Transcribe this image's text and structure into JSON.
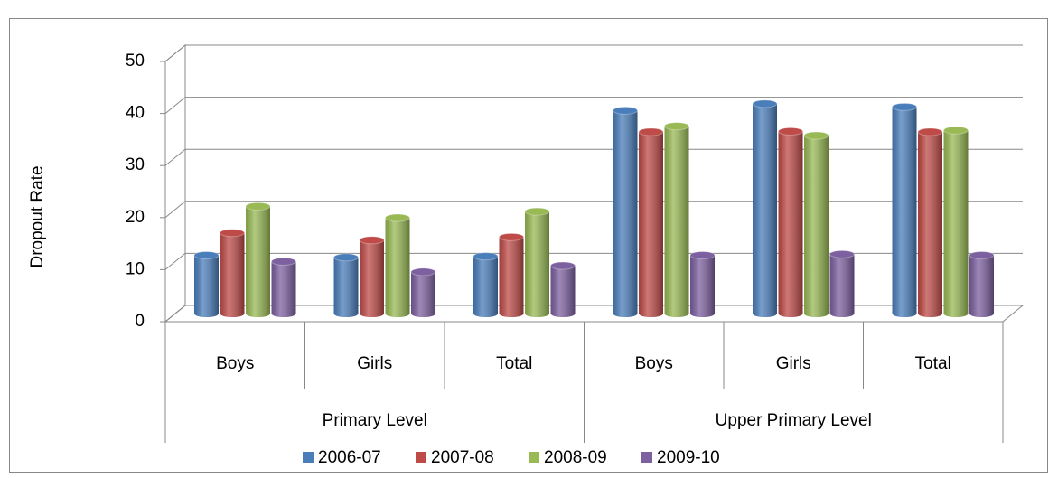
{
  "chart_data": {
    "type": "bar3d",
    "y_label": "Dropout Rate",
    "category_groups": [
      {
        "name": "Primary Level",
        "categories": [
          "Boys",
          "Girls",
          "Total"
        ]
      },
      {
        "name": "Upper Primary Level",
        "categories": [
          "Boys",
          "Girls",
          "Total"
        ]
      }
    ],
    "series": [
      {
        "name": "2006-07",
        "color": "#4a7ebb",
        "values": [
          11.2,
          10.8,
          11.0,
          39.0,
          40.3,
          39.7
        ]
      },
      {
        "name": "2007-08",
        "color": "#be4b48",
        "values": [
          15.5,
          14.1,
          14.7,
          34.9,
          35.0,
          34.9
        ]
      },
      {
        "name": "2008-09",
        "color": "#98b954",
        "values": [
          20.6,
          18.4,
          19.6,
          36.0,
          34.2,
          35.2
        ]
      },
      {
        "name": "2009-10",
        "color": "#7d60a0",
        "values": [
          10.0,
          8.0,
          9.2,
          11.2,
          11.4,
          11.2
        ]
      }
    ],
    "ylim": [
      0,
      50
    ],
    "yticks": [
      0,
      10,
      20,
      30,
      40,
      50
    ],
    "grid": true,
    "legend": "bottom"
  }
}
